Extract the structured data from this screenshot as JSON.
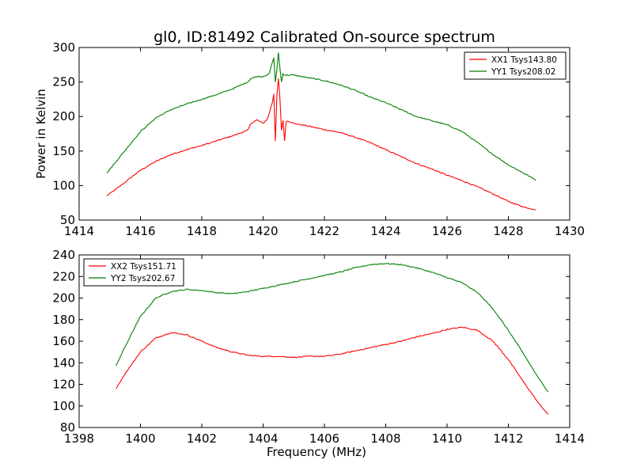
{
  "figure": {
    "title": "gl0, ID:81492 Calibrated On-source spectrum",
    "background": "#ffffff"
  },
  "colors": {
    "series_red": "#ff0000",
    "series_green": "#007f00"
  },
  "chart_data": [
    {
      "type": "line",
      "title": "gl0, ID:81492 Calibrated On-source spectrum",
      "xlabel": "",
      "ylabel": "Power in Kelvin",
      "xlim": [
        1414,
        1430
      ],
      "ylim": [
        50,
        300
      ],
      "xticks": [
        "1414",
        "1416",
        "1418",
        "1420",
        "1422",
        "1424",
        "1426",
        "1428",
        "1430"
      ],
      "yticks": [
        "50",
        "100",
        "150",
        "200",
        "250",
        "300"
      ],
      "grid": false,
      "legend_position": "top-right",
      "series": [
        {
          "name": "XX1 Tsys143.80",
          "color": "#ff0000",
          "x": [
            1414.9,
            1415.3,
            1415.7,
            1416.0,
            1416.5,
            1417.0,
            1417.5,
            1418.0,
            1418.5,
            1419.0,
            1419.5,
            1419.6,
            1419.8,
            1420.0,
            1420.15,
            1420.3,
            1420.35,
            1420.4,
            1420.45,
            1420.5,
            1420.55,
            1420.6,
            1420.65,
            1420.7,
            1420.75,
            1420.8,
            1421.0,
            1421.5,
            1422.0,
            1422.5,
            1423.0,
            1423.5,
            1424.0,
            1424.5,
            1425.0,
            1425.5,
            1426.0,
            1426.5,
            1427.0,
            1427.5,
            1428.0,
            1428.5,
            1428.9
          ],
          "y": [
            85,
            98,
            112,
            122,
            135,
            145,
            152,
            158,
            165,
            172,
            180,
            190,
            195,
            190,
            197,
            220,
            233,
            165,
            230,
            255,
            225,
            180,
            195,
            165,
            192,
            194,
            190,
            186,
            181,
            177,
            170,
            162,
            152,
            142,
            132,
            124,
            115,
            107,
            98,
            88,
            77,
            69,
            65
          ]
        },
        {
          "name": "YY1 Tsys208.02",
          "color": "#007f00",
          "x": [
            1414.9,
            1415.3,
            1415.7,
            1416.0,
            1416.5,
            1417.0,
            1417.5,
            1418.0,
            1418.5,
            1419.0,
            1419.5,
            1419.6,
            1419.8,
            1420.0,
            1420.2,
            1420.3,
            1420.35,
            1420.4,
            1420.45,
            1420.5,
            1420.55,
            1420.6,
            1420.65,
            1420.7,
            1421.0,
            1421.5,
            1422.0,
            1422.5,
            1423.0,
            1423.5,
            1424.0,
            1424.5,
            1425.0,
            1425.5,
            1426.0,
            1426.5,
            1427.0,
            1427.5,
            1428.0,
            1428.5,
            1428.9
          ],
          "y": [
            118,
            140,
            162,
            178,
            198,
            210,
            218,
            225,
            232,
            240,
            250,
            255,
            258,
            258,
            262,
            278,
            285,
            250,
            268,
            292,
            270,
            250,
            262,
            260,
            260,
            256,
            252,
            246,
            238,
            228,
            220,
            210,
            200,
            194,
            188,
            178,
            162,
            145,
            130,
            118,
            108
          ]
        }
      ]
    },
    {
      "type": "line",
      "title": "",
      "xlabel": "Frequency (MHz)",
      "ylabel": "",
      "xlim": [
        1398,
        1414
      ],
      "ylim": [
        80,
        240
      ],
      "xticks": [
        "1398",
        "1400",
        "1402",
        "1404",
        "1406",
        "1408",
        "1410",
        "1412",
        "1414"
      ],
      "yticks": [
        "80",
        "100",
        "120",
        "140",
        "160",
        "180",
        "200",
        "220",
        "240"
      ],
      "grid": false,
      "legend_position": "top-left",
      "series": [
        {
          "name": "XX2 Tsys151.71",
          "color": "#ff0000",
          "x": [
            1399.2,
            1399.5,
            1400.0,
            1400.5,
            1401.0,
            1401.5,
            1402.0,
            1402.5,
            1403.0,
            1403.5,
            1404.0,
            1404.5,
            1405.0,
            1405.5,
            1406.0,
            1406.5,
            1407.0,
            1407.5,
            1408.0,
            1408.5,
            1409.0,
            1409.5,
            1410.0,
            1410.5,
            1411.0,
            1411.5,
            1412.0,
            1412.5,
            1413.0,
            1413.3
          ],
          "y": [
            116,
            130,
            150,
            163,
            168,
            166,
            160,
            154,
            150,
            147,
            146,
            146,
            145,
            146,
            146,
            148,
            151,
            154,
            157,
            160,
            164,
            167,
            171,
            173,
            170,
            160,
            143,
            122,
            102,
            92
          ]
        },
        {
          "name": "YY2 Tsys202.67",
          "color": "#007f00",
          "x": [
            1399.2,
            1399.5,
            1400.0,
            1400.5,
            1401.0,
            1401.5,
            1402.0,
            1402.5,
            1403.0,
            1403.5,
            1404.0,
            1404.5,
            1405.0,
            1405.5,
            1406.0,
            1406.5,
            1407.0,
            1407.5,
            1408.0,
            1408.5,
            1409.0,
            1409.5,
            1410.0,
            1410.5,
            1411.0,
            1411.5,
            1412.0,
            1412.5,
            1413.0,
            1413.3
          ],
          "y": [
            137,
            155,
            183,
            200,
            206,
            208,
            207,
            205,
            204,
            206,
            209,
            212,
            215,
            218,
            221,
            224,
            228,
            231,
            232,
            231,
            228,
            224,
            219,
            214,
            205,
            190,
            170,
            148,
            125,
            113
          ]
        }
      ]
    }
  ]
}
